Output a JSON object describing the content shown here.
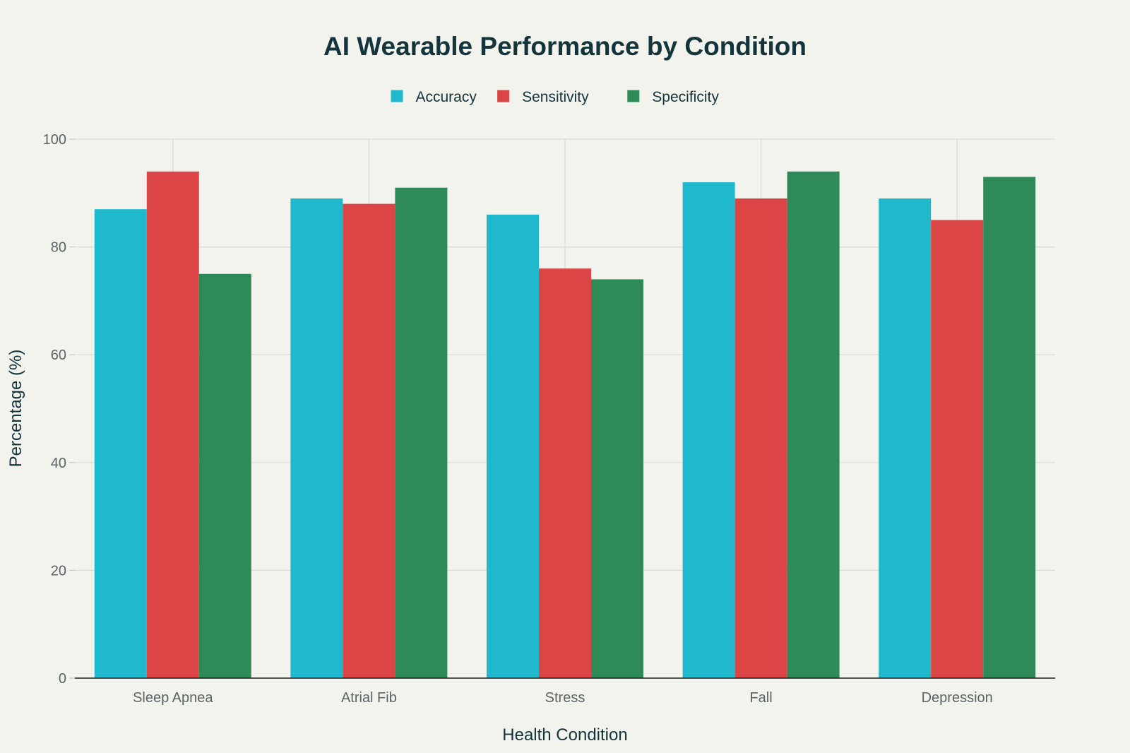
{
  "chart_data": {
    "type": "bar",
    "title": "AI Wearable Performance by Condition",
    "xlabel": "Health Condition",
    "ylabel": "Percentage (%)",
    "ylim": [
      0,
      100
    ],
    "yticks": [
      0,
      20,
      40,
      60,
      80,
      100
    ],
    "grid": true,
    "legend_position": "top-center",
    "categories": [
      "Sleep Apnea",
      "Atrial Fib",
      "Stress",
      "Fall",
      "Depression"
    ],
    "series": [
      {
        "name": "Accuracy",
        "color": "#1fb8cd",
        "values": [
          87,
          89,
          86,
          92,
          89
        ]
      },
      {
        "name": "Sensitivity",
        "color": "#db4545",
        "values": [
          94,
          88,
          76,
          89,
          85
        ]
      },
      {
        "name": "Specificity",
        "color": "#2e8b57",
        "values": [
          75,
          91,
          74,
          94,
          93
        ]
      }
    ]
  }
}
